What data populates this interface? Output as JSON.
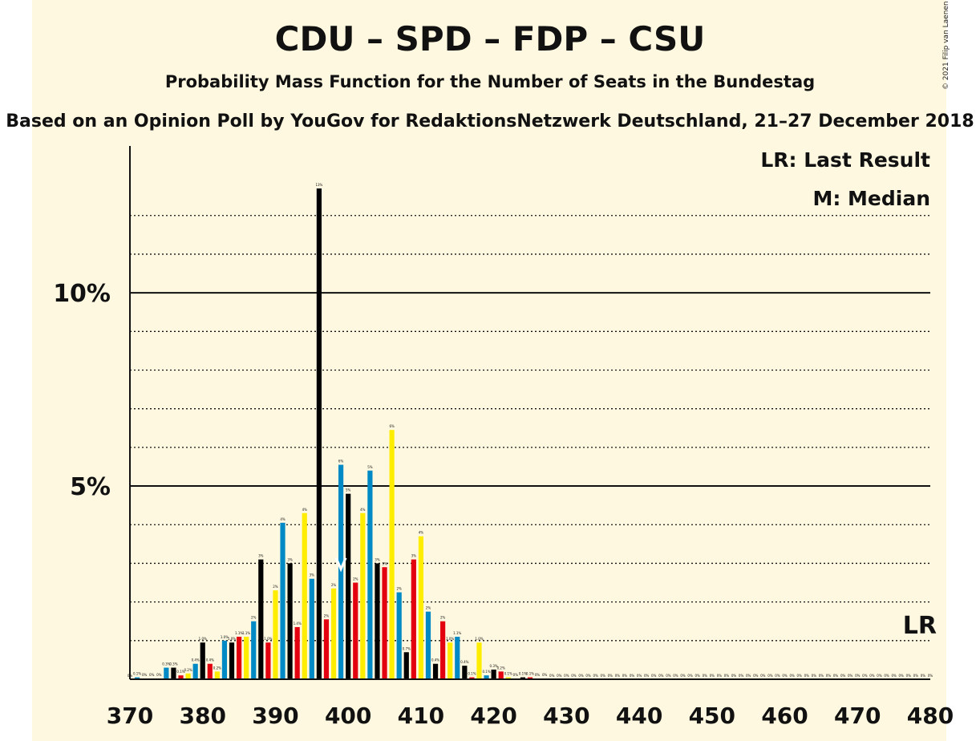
{
  "title": "CDU – SPD – FDP – CSU",
  "subtitle": "Probability Mass Function for the Number of Seats in the Bundestag",
  "source": "Based on an Opinion Poll by YouGov for RedaktionsNetzwerk Deutschland, 21–27 December 2018",
  "copyright": "© 2021 Filip van Laenen",
  "legend": {
    "lr": "LR: Last Result",
    "median": "M: Median"
  },
  "colors": {
    "cdu": "#000000",
    "spd": "#e3000f",
    "fdp": "#ffed00",
    "csu": "#008ac5",
    "background": "#fef8e0"
  },
  "chart_data": {
    "type": "bar",
    "x_label_ticks": [
      370,
      380,
      390,
      400,
      410,
      420,
      430,
      440,
      450,
      460,
      470,
      480
    ],
    "y_ticks": [
      {
        "value": 5,
        "label": "5%"
      },
      {
        "value": 10,
        "label": "10%"
      }
    ],
    "ylim": [
      0,
      13.8
    ],
    "xlim": [
      370,
      480
    ],
    "median": 399,
    "last_result": 480,
    "last_result_label": "LR",
    "bars": [
      {
        "seat": 370,
        "value": 0.0,
        "label": "0%"
      },
      {
        "seat": 371,
        "value": 0.05,
        "label": "0.1%"
      },
      {
        "seat": 372,
        "value": 0.02,
        "label": "0%"
      },
      {
        "seat": 373,
        "value": 0.02,
        "label": "0%"
      },
      {
        "seat": 374,
        "value": 0.02,
        "label": "0%"
      },
      {
        "seat": 375,
        "value": 0.3,
        "label": "0.3%"
      },
      {
        "seat": 376,
        "value": 0.3,
        "label": "0.3%"
      },
      {
        "seat": 377,
        "value": 0.1,
        "label": "0.1%"
      },
      {
        "seat": 378,
        "value": 0.15,
        "label": "0.2%"
      },
      {
        "seat": 379,
        "value": 0.4,
        "label": "0.4%"
      },
      {
        "seat": 380,
        "value": 0.95,
        "label": "1.0%"
      },
      {
        "seat": 381,
        "value": 0.4,
        "label": "0.4%"
      },
      {
        "seat": 382,
        "value": 0.2,
        "label": "0.2%"
      },
      {
        "seat": 383,
        "value": 1.0,
        "label": "1.0%"
      },
      {
        "seat": 384,
        "value": 0.95,
        "label": "1.0%"
      },
      {
        "seat": 385,
        "value": 1.1,
        "label": "1.1%"
      },
      {
        "seat": 386,
        "value": 1.1,
        "label": "1.1%"
      },
      {
        "seat": 387,
        "value": 1.5,
        "label": "2%"
      },
      {
        "seat": 388,
        "value": 3.1,
        "label": "3%"
      },
      {
        "seat": 389,
        "value": 0.95,
        "label": "1.0%"
      },
      {
        "seat": 390,
        "value": 2.3,
        "label": "2%"
      },
      {
        "seat": 391,
        "value": 4.05,
        "label": "4%"
      },
      {
        "seat": 392,
        "value": 3.0,
        "label": "3%"
      },
      {
        "seat": 393,
        "value": 1.35,
        "label": "1.4%"
      },
      {
        "seat": 394,
        "value": 4.3,
        "label": "4%"
      },
      {
        "seat": 395,
        "value": 2.6,
        "label": "3%"
      },
      {
        "seat": 396,
        "value": 12.7,
        "label": "13%"
      },
      {
        "seat": 397,
        "value": 1.55,
        "label": "2%"
      },
      {
        "seat": 398,
        "value": 2.35,
        "label": "2%"
      },
      {
        "seat": 399,
        "value": 5.55,
        "label": "6%"
      },
      {
        "seat": 400,
        "value": 4.8,
        "label": "5%"
      },
      {
        "seat": 401,
        "value": 2.5,
        "label": "2%"
      },
      {
        "seat": 402,
        "value": 4.3,
        "label": "4%"
      },
      {
        "seat": 403,
        "value": 5.4,
        "label": "5%"
      },
      {
        "seat": 404,
        "value": 3.0,
        "label": "3%"
      },
      {
        "seat": 405,
        "value": 2.9,
        "label": "3%"
      },
      {
        "seat": 406,
        "value": 6.45,
        "label": "6%"
      },
      {
        "seat": 407,
        "value": 2.25,
        "label": "2%"
      },
      {
        "seat": 408,
        "value": 0.7,
        "label": "0.7%"
      },
      {
        "seat": 409,
        "value": 3.1,
        "label": "3%"
      },
      {
        "seat": 410,
        "value": 3.7,
        "label": "4%"
      },
      {
        "seat": 411,
        "value": 1.75,
        "label": "2%"
      },
      {
        "seat": 412,
        "value": 0.4,
        "label": "0.4%"
      },
      {
        "seat": 413,
        "value": 1.5,
        "label": "2%"
      },
      {
        "seat": 414,
        "value": 0.95,
        "label": "1.0%"
      },
      {
        "seat": 415,
        "value": 1.1,
        "label": "1.1%"
      },
      {
        "seat": 416,
        "value": 0.35,
        "label": "0.4%"
      },
      {
        "seat": 417,
        "value": 0.05,
        "label": "0.1%"
      },
      {
        "seat": 418,
        "value": 0.95,
        "label": "1.0%"
      },
      {
        "seat": 419,
        "value": 0.1,
        "label": "0.1%"
      },
      {
        "seat": 420,
        "value": 0.25,
        "label": "0.3%"
      },
      {
        "seat": 421,
        "value": 0.2,
        "label": "0.2%"
      },
      {
        "seat": 422,
        "value": 0.05,
        "label": "0.1%"
      },
      {
        "seat": 423,
        "value": 0.02,
        "label": "0%"
      },
      {
        "seat": 424,
        "value": 0.05,
        "label": "0.1%"
      },
      {
        "seat": 425,
        "value": 0.05,
        "label": "0.1%"
      },
      {
        "seat": 426,
        "value": 0.02,
        "label": "0%"
      },
      {
        "seat": 427,
        "value": 0.02,
        "label": "0%"
      },
      {
        "seat": 428,
        "value": 0.0,
        "label": "0%"
      },
      {
        "seat": 429,
        "value": 0.0,
        "label": "0%"
      },
      {
        "seat": 430,
        "value": 0.0,
        "label": "0%"
      },
      {
        "seat": 431,
        "value": 0.0,
        "label": "0%"
      },
      {
        "seat": 432,
        "value": 0.0,
        "label": "0%"
      },
      {
        "seat": 433,
        "value": 0.0,
        "label": "0%"
      },
      {
        "seat": 434,
        "value": 0.0,
        "label": "0%"
      },
      {
        "seat": 435,
        "value": 0.0,
        "label": "0%"
      },
      {
        "seat": 436,
        "value": 0.0,
        "label": "0%"
      },
      {
        "seat": 437,
        "value": 0.0,
        "label": "0%"
      },
      {
        "seat": 438,
        "value": 0.0,
        "label": "0%"
      },
      {
        "seat": 439,
        "value": 0.0,
        "label": "0%"
      },
      {
        "seat": 440,
        "value": 0.0,
        "label": "0%"
      },
      {
        "seat": 441,
        "value": 0.0,
        "label": "0%"
      },
      {
        "seat": 442,
        "value": 0.0,
        "label": "0%"
      },
      {
        "seat": 443,
        "value": 0.0,
        "label": "0%"
      },
      {
        "seat": 444,
        "value": 0.0,
        "label": "0%"
      },
      {
        "seat": 445,
        "value": 0.0,
        "label": "0%"
      },
      {
        "seat": 446,
        "value": 0.0,
        "label": "0%"
      },
      {
        "seat": 447,
        "value": 0.0,
        "label": "0%"
      },
      {
        "seat": 448,
        "value": 0.0,
        "label": "0%"
      },
      {
        "seat": 449,
        "value": 0.0,
        "label": "0%"
      },
      {
        "seat": 450,
        "value": 0.0,
        "label": "0%"
      },
      {
        "seat": 451,
        "value": 0.0,
        "label": "0%"
      },
      {
        "seat": 452,
        "value": 0.0,
        "label": "0%"
      },
      {
        "seat": 453,
        "value": 0.0,
        "label": "0%"
      },
      {
        "seat": 454,
        "value": 0.0,
        "label": "0%"
      },
      {
        "seat": 455,
        "value": 0.0,
        "label": "0%"
      },
      {
        "seat": 456,
        "value": 0.0,
        "label": "0%"
      },
      {
        "seat": 457,
        "value": 0.0,
        "label": "0%"
      },
      {
        "seat": 458,
        "value": 0.0,
        "label": "0%"
      },
      {
        "seat": 459,
        "value": 0.0,
        "label": "0%"
      },
      {
        "seat": 460,
        "value": 0.0,
        "label": "0%"
      },
      {
        "seat": 461,
        "value": 0.0,
        "label": "0%"
      },
      {
        "seat": 462,
        "value": 0.0,
        "label": "0%"
      },
      {
        "seat": 463,
        "value": 0.0,
        "label": "0%"
      },
      {
        "seat": 464,
        "value": 0.0,
        "label": "0%"
      },
      {
        "seat": 465,
        "value": 0.0,
        "label": "0%"
      },
      {
        "seat": 466,
        "value": 0.0,
        "label": "0%"
      },
      {
        "seat": 467,
        "value": 0.0,
        "label": "0%"
      },
      {
        "seat": 468,
        "value": 0.0,
        "label": "0%"
      },
      {
        "seat": 469,
        "value": 0.0,
        "label": "0%"
      },
      {
        "seat": 470,
        "value": 0.0,
        "label": "0%"
      },
      {
        "seat": 471,
        "value": 0.0,
        "label": "0%"
      },
      {
        "seat": 472,
        "value": 0.0,
        "label": "0%"
      },
      {
        "seat": 473,
        "value": 0.0,
        "label": "0%"
      },
      {
        "seat": 474,
        "value": 0.0,
        "label": "0%"
      },
      {
        "seat": 475,
        "value": 0.0,
        "label": "0%"
      },
      {
        "seat": 476,
        "value": 0.0,
        "label": "0%"
      },
      {
        "seat": 477,
        "value": 0.0,
        "label": "0%"
      },
      {
        "seat": 478,
        "value": 0.0,
        "label": "0%"
      },
      {
        "seat": 479,
        "value": 0.0,
        "label": "0%"
      },
      {
        "seat": 480,
        "value": 0.0,
        "label": "0%"
      }
    ]
  }
}
